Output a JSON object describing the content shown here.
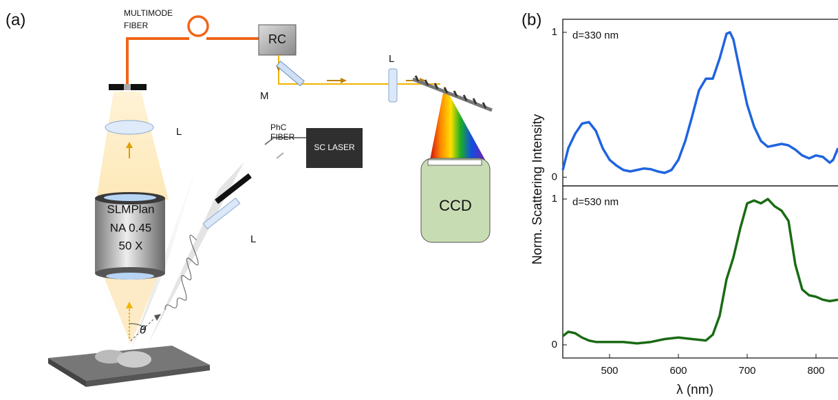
{
  "diagram": {
    "panel_label": "(a)",
    "fiber_label": [
      "MULTIMODE",
      "FIBER"
    ],
    "rc": "RC",
    "mirror": "M",
    "lenses": [
      "L",
      "L",
      "L"
    ],
    "phc_label": [
      "PhC",
      "FIBER"
    ],
    "sc_laser": "SC LASER",
    "ccd": "CCD",
    "objective": [
      "SLMPlan",
      "NA 0.45",
      "50 X"
    ],
    "angle": "θ"
  },
  "chart_data": [
    {
      "type": "line",
      "panel_label": "(b)",
      "ylabel": "Norm. Scattering Intensity",
      "annotation": "d=330 nm",
      "x": [
        432,
        440,
        450,
        460,
        470,
        480,
        490,
        500,
        510,
        520,
        530,
        540,
        550,
        560,
        570,
        580,
        590,
        600,
        610,
        620,
        630,
        640,
        650,
        660,
        670,
        675,
        680,
        690,
        700,
        710,
        720,
        730,
        740,
        750,
        760,
        770,
        780,
        790,
        800,
        810,
        820,
        825,
        832
      ],
      "series": [
        {
          "name": "d=330 nm",
          "color": "#1f64e0",
          "values": [
            0.05,
            0.2,
            0.3,
            0.37,
            0.38,
            0.32,
            0.2,
            0.12,
            0.08,
            0.05,
            0.04,
            0.05,
            0.06,
            0.055,
            0.04,
            0.03,
            0.05,
            0.12,
            0.25,
            0.42,
            0.6,
            0.68,
            0.68,
            0.82,
            0.99,
            1.0,
            0.95,
            0.72,
            0.5,
            0.35,
            0.25,
            0.21,
            0.22,
            0.23,
            0.22,
            0.19,
            0.15,
            0.13,
            0.15,
            0.14,
            0.1,
            0.12,
            0.2
          ]
        }
      ],
      "xlim": [
        432,
        832
      ],
      "ylim": [
        -0.06,
        1.09
      ],
      "yticks": [
        0,
        1
      ]
    },
    {
      "type": "line",
      "xlabel": "λ (nm)",
      "annotation": "d=530 nm",
      "x": [
        432,
        440,
        450,
        460,
        470,
        480,
        500,
        520,
        540,
        560,
        580,
        600,
        620,
        640,
        650,
        660,
        670,
        680,
        690,
        700,
        710,
        720,
        730,
        740,
        750,
        760,
        770,
        780,
        790,
        800,
        810,
        820,
        832
      ],
      "series": [
        {
          "name": "d=530 nm",
          "color": "#1a6b14",
          "values": [
            0.06,
            0.09,
            0.08,
            0.05,
            0.03,
            0.02,
            0.02,
            0.02,
            0.01,
            0.02,
            0.04,
            0.05,
            0.04,
            0.03,
            0.07,
            0.2,
            0.45,
            0.6,
            0.8,
            0.97,
            0.99,
            0.97,
            1.0,
            0.95,
            0.92,
            0.85,
            0.55,
            0.38,
            0.34,
            0.33,
            0.31,
            0.3,
            0.31
          ]
        }
      ],
      "xlim": [
        432,
        832
      ],
      "ylim": [
        -0.09,
        1.09
      ],
      "yticks": [
        0,
        1
      ],
      "xticks": [
        500,
        600,
        700,
        800
      ]
    }
  ]
}
